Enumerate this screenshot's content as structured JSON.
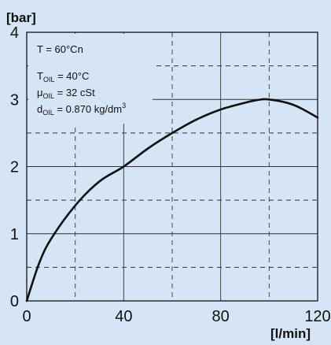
{
  "chart_data": {
    "type": "line",
    "ylabel": "[bar]",
    "xlabel": "[l/min]",
    "xlim": [
      0,
      120
    ],
    "ylim": [
      0,
      4
    ],
    "x_ticks": [
      {
        "value": 0,
        "label": "0"
      },
      {
        "value": 40,
        "label": "40"
      },
      {
        "value": 80,
        "label": "80"
      },
      {
        "value": 120,
        "label": "120"
      }
    ],
    "y_ticks": [
      {
        "value": 0,
        "label": "0"
      },
      {
        "value": 1,
        "label": "1"
      },
      {
        "value": 2,
        "label": "2"
      },
      {
        "value": 3,
        "label": "3"
      },
      {
        "value": 4,
        "label": "4"
      }
    ],
    "grid": true,
    "annotations": {
      "temperature": {
        "main": "T = 60°Cn"
      },
      "oil_temp": {
        "main": "T",
        "sub": "OIL",
        "rest": " = 40°C"
      },
      "oil_viscosity": {
        "main": "μ",
        "sub": "OIL",
        "rest": " = 32 cSt"
      },
      "oil_density": {
        "main": "d",
        "sub": "OIL",
        "rest": " = 0.870 kg/dm",
        "sup": "3"
      }
    },
    "series": [
      {
        "x": [
          0,
          5,
          10,
          20,
          30,
          40,
          50,
          60,
          70,
          80,
          90,
          95,
          100,
          110,
          120
        ],
        "y": [
          0,
          0.55,
          0.92,
          1.42,
          1.78,
          2.0,
          2.27,
          2.5,
          2.7,
          2.85,
          2.95,
          2.99,
          3.0,
          2.92,
          2.73
        ]
      }
    ],
    "colors": {
      "background": "#d5e5f5",
      "line": "#111111",
      "grid": "#333333"
    }
  }
}
